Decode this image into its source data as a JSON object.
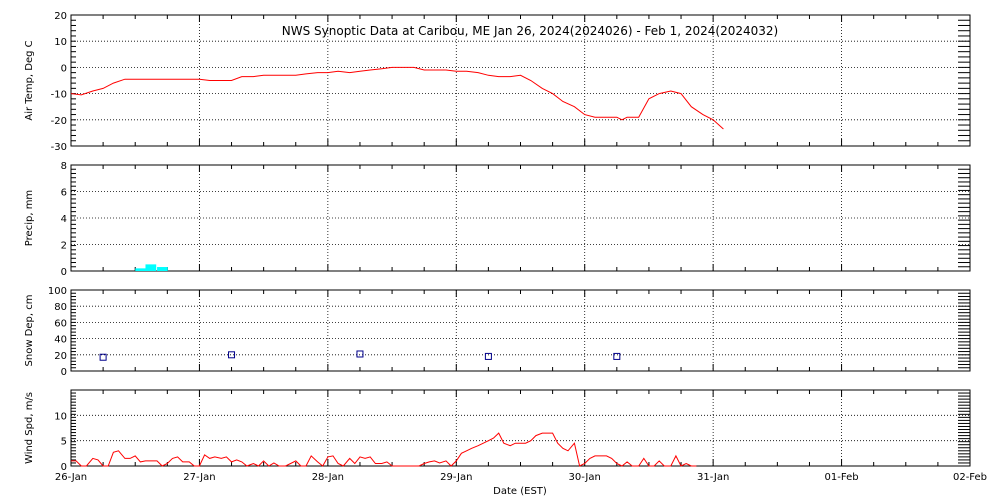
{
  "title": "NWS Synoptic Data at Caribou, ME   Jan 26, 2024(2024026) - Feb  1, 2024(2024032)",
  "x_axis": {
    "label": "Date (EST)",
    "start": "2024-01-26",
    "end": "2024-02-02",
    "tick_labels": [
      "26-Jan",
      "27-Jan",
      "28-Jan",
      "29-Jan",
      "30-Jan",
      "31-Jan",
      "01-Feb",
      "02-Feb"
    ]
  },
  "colors": {
    "temp": "#ff0000",
    "precip": "#00ffff",
    "snow": "#00008b",
    "wind": "#ff0000",
    "grid": "#000000"
  },
  "chart_data": [
    {
      "type": "line",
      "ylabel": "Air Temp, Deg C",
      "ylim": [
        -30,
        20
      ],
      "yticks": [
        20,
        10,
        0,
        -10,
        -20,
        -30
      ],
      "grid": true,
      "x_units": "days since 2024-01-26 00:00 EST",
      "series": [
        {
          "x": [
            0,
            0.08,
            0.17,
            0.25,
            0.33,
            0.42,
            0.5,
            0.58,
            0.67,
            0.75,
            0.83,
            0.92,
            1.0,
            1.08,
            1.17,
            1.25,
            1.33,
            1.42,
            1.5,
            1.58,
            1.67,
            1.75,
            1.83,
            1.92,
            2.0,
            2.08,
            2.17,
            2.25,
            2.33,
            2.42,
            2.5,
            2.58,
            2.67,
            2.75,
            2.83,
            2.92,
            3.0,
            3.08,
            3.17,
            3.25,
            3.33,
            3.42,
            3.5,
            3.58,
            3.67,
            3.75,
            3.83,
            3.92,
            4.0,
            4.08,
            4.17,
            4.25,
            4.29,
            4.33,
            4.42,
            4.5,
            4.58,
            4.67,
            4.75,
            4.83,
            4.92,
            5.0,
            5.08
          ],
          "values": [
            -10,
            -10.5,
            -9,
            -8,
            -6,
            -4.5,
            -4.5,
            -4.5,
            -4.5,
            -4.5,
            -4.5,
            -4.5,
            -4.5,
            -5,
            -5,
            -5,
            -3.5,
            -3.5,
            -3,
            -3,
            -3,
            -3,
            -2.5,
            -2,
            -2,
            -1.5,
            -2,
            -1.5,
            -1,
            -0.5,
            0,
            0,
            0,
            -1,
            -1,
            -1,
            -1.5,
            -1.5,
            -2,
            -3,
            -3.5,
            -3.5,
            -3,
            -5,
            -8,
            -10,
            -13,
            -15,
            -18,
            -19,
            -19,
            -19,
            -20,
            -19,
            -19,
            -12,
            -10,
            -9,
            -10,
            -15,
            -18,
            -20,
            -23.5
          ]
        }
      ]
    },
    {
      "type": "area",
      "ylabel": "Precip, mm",
      "ylim": [
        0,
        8
      ],
      "yticks": [
        0,
        2,
        4,
        6,
        8
      ],
      "grid": true,
      "x_units": "days since 2024-01-26 00:00 EST",
      "series": [
        {
          "x": [
            0.5,
            0.58,
            0.67
          ],
          "values": [
            0.2,
            0.5,
            0.3
          ]
        }
      ]
    },
    {
      "type": "scatter",
      "ylabel": "Snow Dep, cm",
      "ylim": [
        0,
        100
      ],
      "yticks": [
        0,
        20,
        40,
        60,
        80,
        100
      ],
      "grid": true,
      "x_units": "days since 2024-01-26 00:00 EST",
      "series": [
        {
          "x": [
            0.25,
            1.25,
            2.25,
            3.25,
            4.25
          ],
          "values": [
            17,
            20,
            21,
            18,
            18
          ]
        }
      ]
    },
    {
      "type": "line",
      "ylabel": "Wind Spd, m/s",
      "ylim": [
        0,
        15
      ],
      "yticks": [
        0,
        5,
        10
      ],
      "grid": true,
      "x_units": "days since 2024-01-26 00:00 EST",
      "series": [
        {
          "x": [
            0,
            0.04,
            0.08,
            0.12,
            0.17,
            0.21,
            0.25,
            0.29,
            0.33,
            0.37,
            0.42,
            0.46,
            0.5,
            0.54,
            0.58,
            0.62,
            0.67,
            0.71,
            0.75,
            0.79,
            0.83,
            0.87,
            0.92,
            0.96,
            1.0,
            1.04,
            1.08,
            1.12,
            1.17,
            1.21,
            1.25,
            1.29,
            1.33,
            1.37,
            1.42,
            1.46,
            1.5,
            1.54,
            1.58,
            1.62,
            1.67,
            1.71,
            1.75,
            1.79,
            1.83,
            1.87,
            1.92,
            1.96,
            2.0,
            2.04,
            2.08,
            2.12,
            2.17,
            2.21,
            2.25,
            2.29,
            2.33,
            2.37,
            2.42,
            2.46,
            2.5,
            2.54,
            2.58,
            2.62,
            2.67,
            2.71,
            2.75,
            2.79,
            2.83,
            2.87,
            2.92,
            2.96,
            3.0,
            3.04,
            3.08,
            3.12,
            3.17,
            3.21,
            3.25,
            3.29,
            3.33,
            3.37,
            3.42,
            3.46,
            3.5,
            3.54,
            3.58,
            3.62,
            3.67,
            3.71,
            3.75,
            3.79,
            3.83,
            3.87,
            3.92,
            3.96,
            4.0,
            4.04,
            4.08,
            4.12,
            4.17,
            4.21,
            4.25,
            4.29,
            4.33,
            4.37,
            4.42,
            4.46,
            4.5,
            4.54,
            4.58,
            4.62,
            4.67,
            4.71,
            4.75,
            4.79,
            4.83,
            4.87
          ],
          "values": [
            1,
            1,
            0,
            0,
            1.5,
            1.2,
            0,
            0,
            2.7,
            3,
            1.5,
            1.5,
            2,
            0.8,
            1,
            1,
            1,
            0,
            0.5,
            1.5,
            1.8,
            0.8,
            0.8,
            0,
            0,
            2.2,
            1.5,
            1.8,
            1.5,
            1.8,
            0.8,
            1.2,
            0.8,
            0,
            0.5,
            0,
            1,
            0,
            0.6,
            0,
            0,
            0.5,
            1,
            0,
            0,
            2,
            0.8,
            0,
            1.8,
            2,
            0.5,
            0,
            1.5,
            0.5,
            1.8,
            1.5,
            1.8,
            0.5,
            0.5,
            0.8,
            0,
            0,
            0,
            0,
            0,
            0,
            0.5,
            0.8,
            1,
            0.6,
            1,
            0,
            1,
            2.5,
            3,
            3.5,
            4,
            4.5,
            5,
            5.5,
            6.5,
            4.5,
            4,
            4.5,
            4.5,
            4.5,
            5,
            6,
            6.5,
            6.5,
            6.5,
            4.5,
            3.5,
            3,
            4.5,
            0,
            0.5,
            1.5,
            2,
            2,
            2,
            1.5,
            0.5,
            0,
            0.8,
            0,
            0,
            1.5,
            0,
            0,
            1,
            0,
            0,
            2,
            0,
            0.5,
            0,
            0
          ]
        }
      ]
    }
  ]
}
